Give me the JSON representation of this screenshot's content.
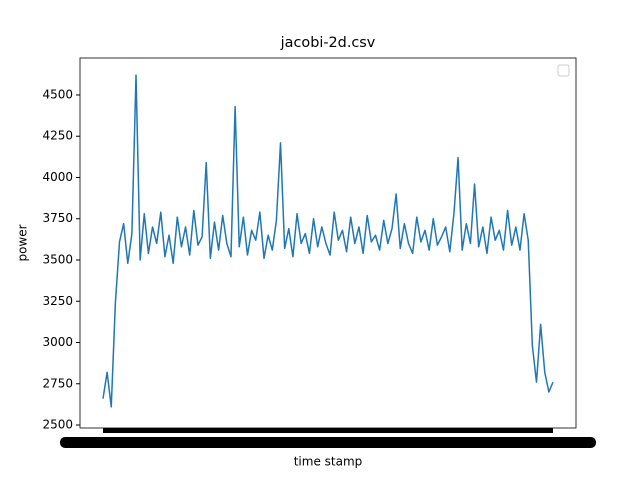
{
  "chart_data": {
    "type": "line",
    "title": "jacobi-2d.csv",
    "xlabel": "time stamp",
    "ylabel": "power",
    "color": "#1f77b4",
    "values": [
      2660,
      2820,
      2610,
      3240,
      3610,
      3720,
      3480,
      3660,
      4620,
      3500,
      3780,
      3540,
      3700,
      3600,
      3790,
      3520,
      3650,
      3480,
      3760,
      3580,
      3700,
      3530,
      3800,
      3590,
      3640,
      4090,
      3510,
      3730,
      3560,
      3770,
      3600,
      3520,
      4430,
      3580,
      3760,
      3530,
      3680,
      3620,
      3790,
      3510,
      3650,
      3560,
      3740,
      4210,
      3570,
      3690,
      3520,
      3780,
      3600,
      3660,
      3540,
      3750,
      3580,
      3700,
      3600,
      3530,
      3790,
      3620,
      3680,
      3550,
      3760,
      3600,
      3700,
      3540,
      3770,
      3610,
      3650,
      3560,
      3740,
      3600,
      3690,
      3900,
      3570,
      3720,
      3600,
      3540,
      3760,
      3610,
      3680,
      3560,
      3750,
      3590,
      3640,
      3700,
      3550,
      3780,
      4120,
      3560,
      3720,
      3600,
      3960,
      3580,
      3700,
      3540,
      3760,
      3620,
      3680,
      3560,
      3800,
      3590,
      3700,
      3560,
      3780,
      3620,
      2980,
      2760,
      3110,
      2820,
      2700,
      2760
    ],
    "xlim": [
      -5.57,
      114.57
    ],
    "ylim": [
      2482,
      4724
    ],
    "yticks": [
      2500,
      2750,
      3000,
      3250,
      3500,
      3750,
      4000,
      4250,
      4500
    ]
  }
}
